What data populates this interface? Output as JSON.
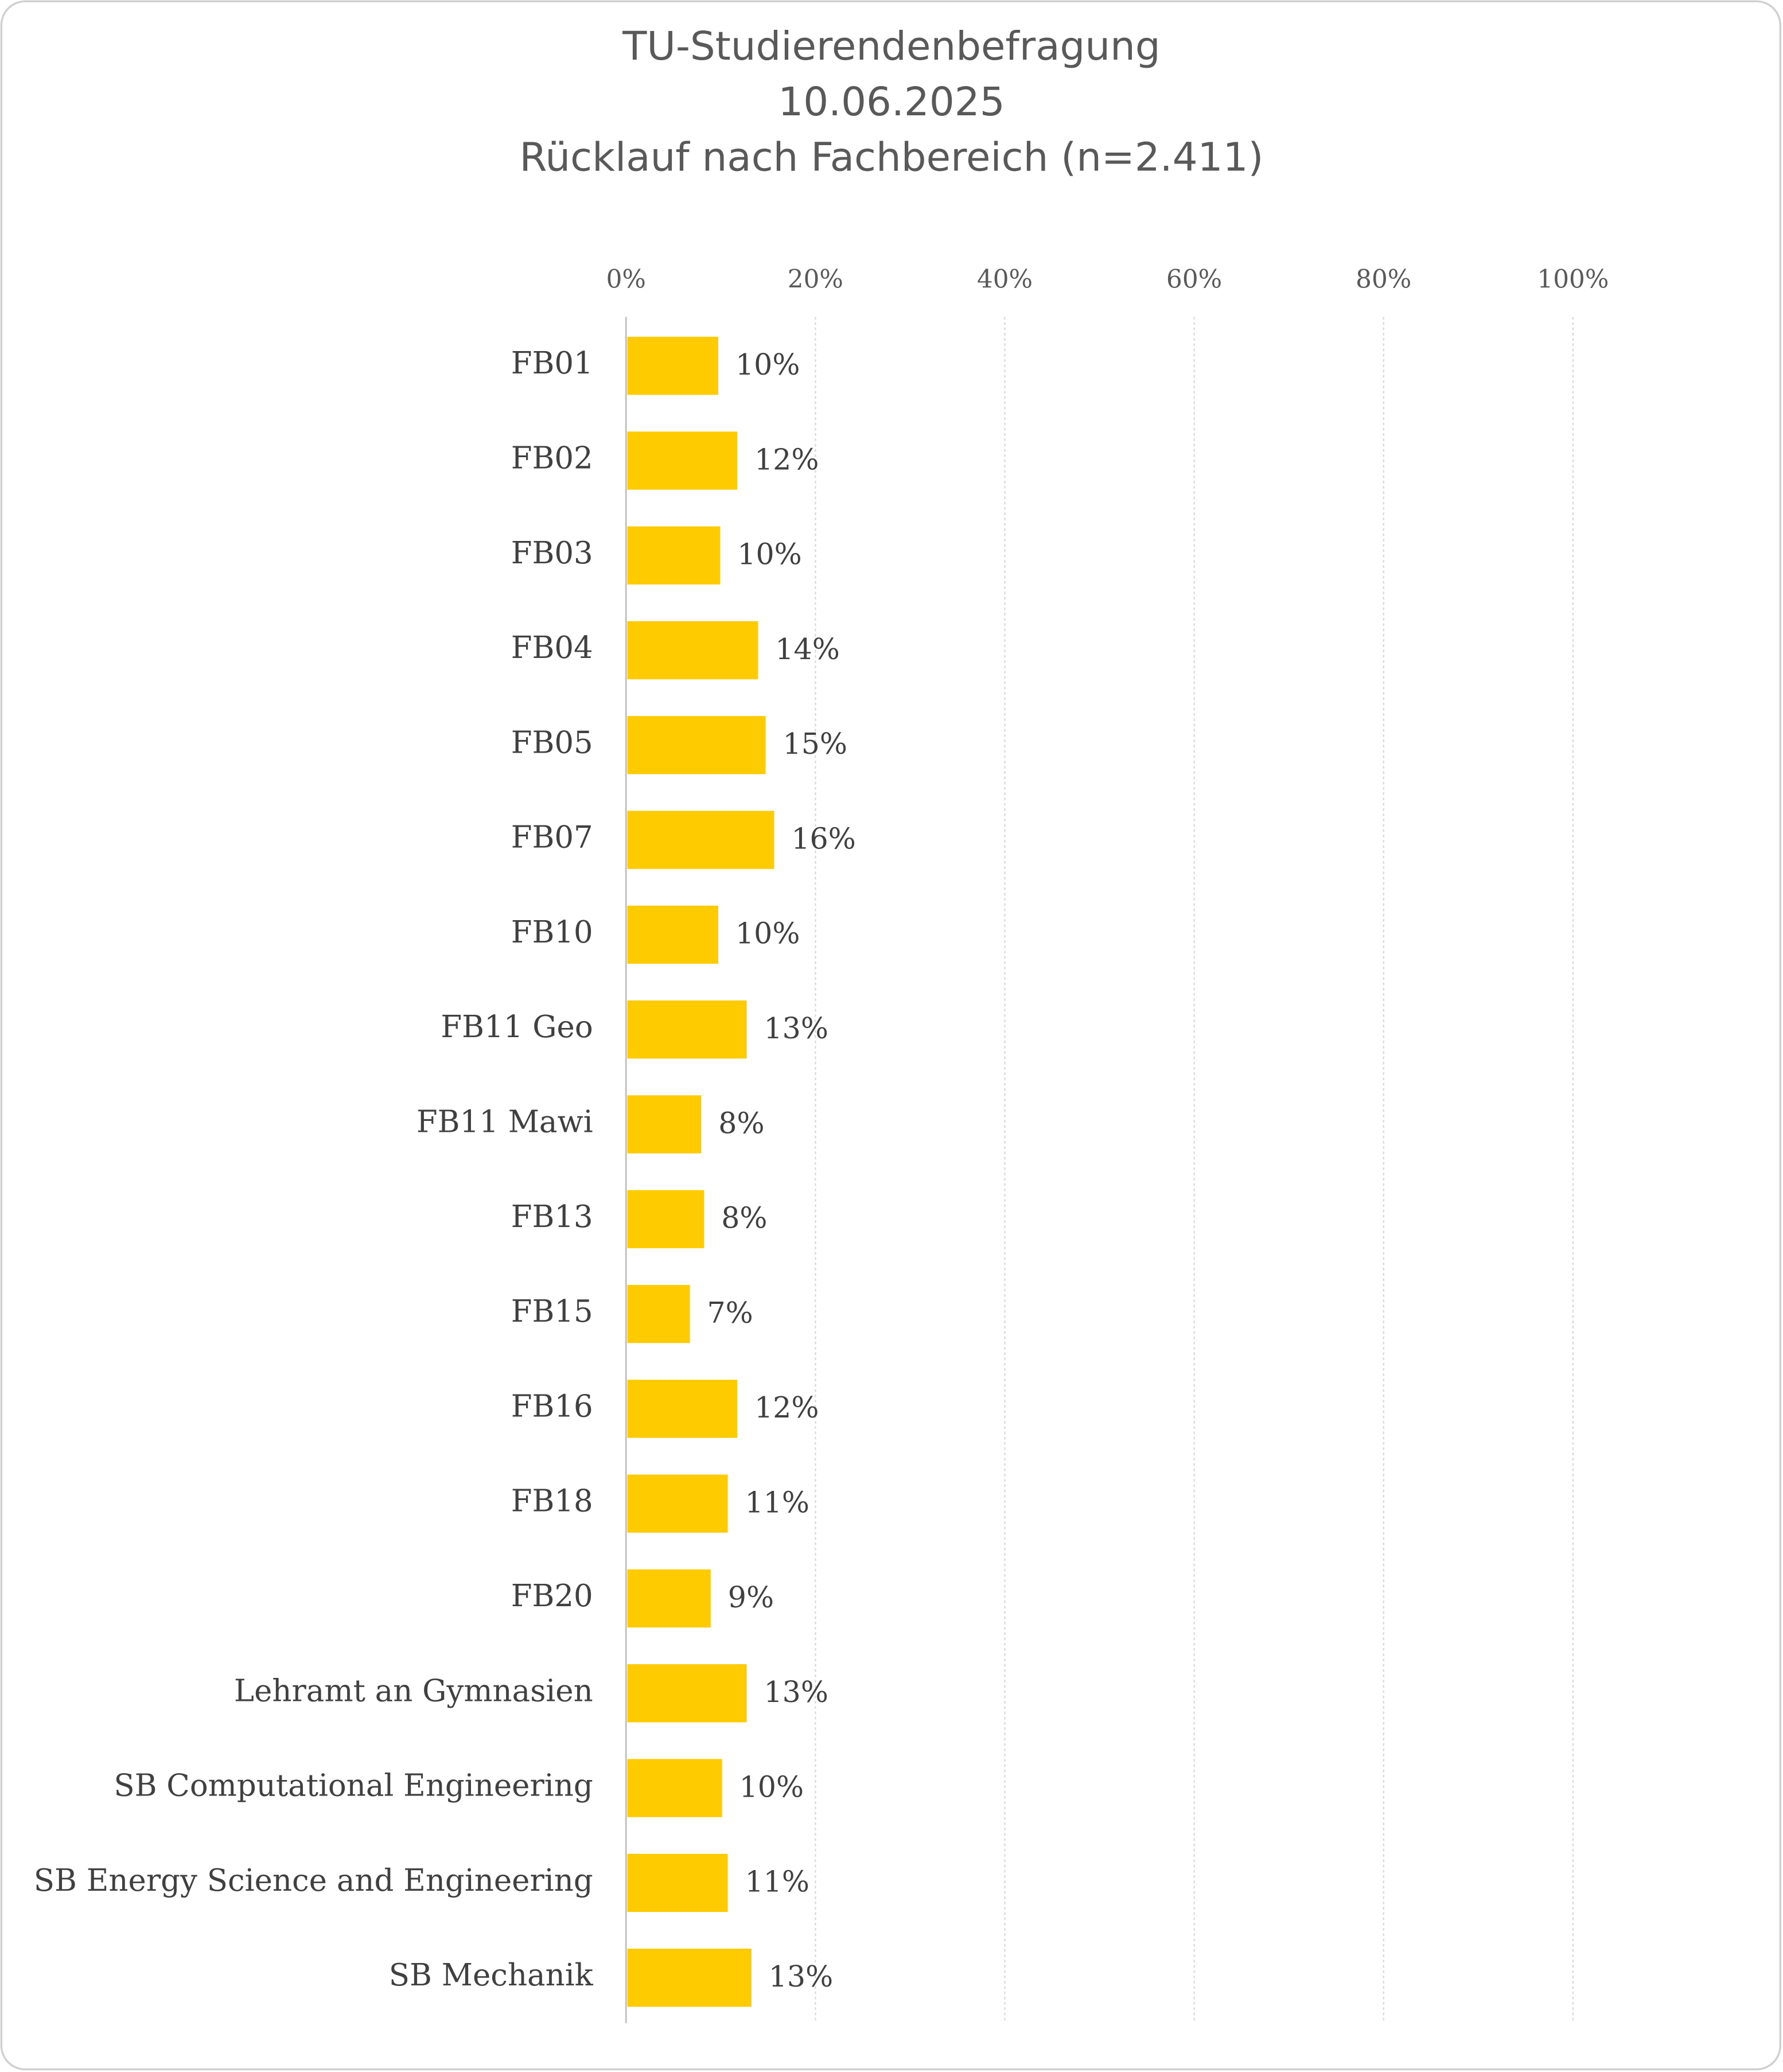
{
  "chart_data": {
    "type": "bar",
    "orientation": "horizontal",
    "title": [
      "TU-Studierendenbefragung",
      "10.06.2025",
      "Rücklauf nach Fachbereich (n=2.411)"
    ],
    "categories": [
      "FB01",
      "FB02",
      "FB03",
      "FB04",
      "FB05",
      "FB07",
      "FB10",
      "FB11 Geo",
      "FB11 Mawi",
      "FB13",
      "FB15",
      "FB16",
      "FB18",
      "FB20",
      "Lehramt an Gymnasien",
      "SB Computational Engineering",
      "SB Energy Science and Engineering",
      "SB Mechanik"
    ],
    "values": [
      9.6,
      11.6,
      9.8,
      13.8,
      14.6,
      15.5,
      9.6,
      12.6,
      7.8,
      8.1,
      6.6,
      11.6,
      10.6,
      8.8,
      12.6,
      10.0,
      10.6,
      13.1
    ],
    "value_labels": [
      "10%",
      "12%",
      "10%",
      "14%",
      "15%",
      "16%",
      "10%",
      "13%",
      "8%",
      "8%",
      "7%",
      "12%",
      "11%",
      "9%",
      "13%",
      "10%",
      "11%",
      "13%"
    ],
    "color": "#fecb00",
    "xlim": [
      0,
      100
    ],
    "xticks": [
      {
        "value": 0,
        "label": "0%"
      },
      {
        "value": 20,
        "label": "20%"
      },
      {
        "value": 40,
        "label": "40%"
      },
      {
        "value": 60,
        "label": "60%"
      },
      {
        "value": 80,
        "label": "80%"
      },
      {
        "value": 100,
        "label": "100%"
      }
    ],
    "grid": true
  }
}
